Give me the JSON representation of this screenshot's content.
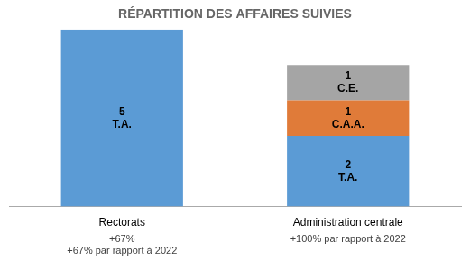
{
  "chart_data": {
    "type": "bar",
    "title": "RÉPARTITION DES AFFAIRES SUIVIES",
    "categories": [
      "Rectorats",
      "Administration centrale"
    ],
    "stacked": true,
    "series": [
      {
        "name": "T.A.",
        "color": "#5b9bd5",
        "values": [
          5,
          2
        ]
      },
      {
        "name": "C.A.A.",
        "color": "#e07b39",
        "values": [
          null,
          1
        ]
      },
      {
        "name": "C.E.",
        "color": "#a5a5a5",
        "values": [
          null,
          1
        ]
      }
    ],
    "ylim": [
      0,
      5
    ],
    "tick_labels": "x",
    "grid": false,
    "data_labels": true,
    "annotations": [
      {
        "category": "Rectorats",
        "text": "+67%"
      },
      {
        "category": "Rectorats",
        "text": "+67% par rapport à 2022"
      },
      {
        "category": "Administration centrale",
        "text": "+100% par rapport à 2022"
      }
    ]
  }
}
